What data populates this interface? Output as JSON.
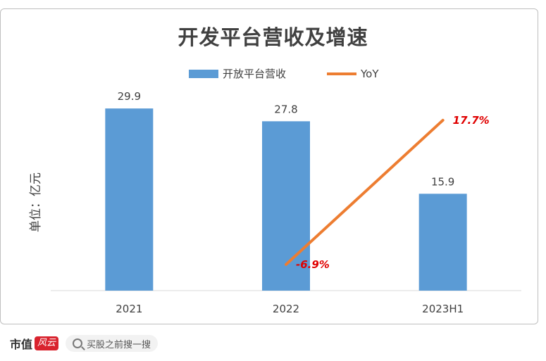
{
  "title": "开发平台营收及增速",
  "chart_data": {
    "type": "bar",
    "categories": [
      "2021",
      "2022",
      "2023H1"
    ],
    "series": [
      {
        "name": "开放平台营收",
        "type": "bar",
        "values": [
          29.9,
          27.8,
          15.9
        ],
        "color": "#5b9bd5"
      },
      {
        "name": "YoY",
        "type": "line",
        "values": [
          null,
          -6.9,
          17.7
        ],
        "labels": [
          "",
          "-6.9%",
          "17.7%"
        ],
        "color": "#ed7d31"
      }
    ],
    "ylabel": "单位：亿元",
    "bar_labels": [
      "29.9",
      "27.8",
      "15.9"
    ],
    "ylim": [
      0,
      35
    ],
    "yoy_range": [
      -8,
      19
    ],
    "legend_position": "top",
    "grid": false,
    "annotation_color": "#e00000"
  },
  "footer": {
    "brand": "市值",
    "brand_mark": "风云",
    "search_text": "买股之前搜一搜"
  }
}
